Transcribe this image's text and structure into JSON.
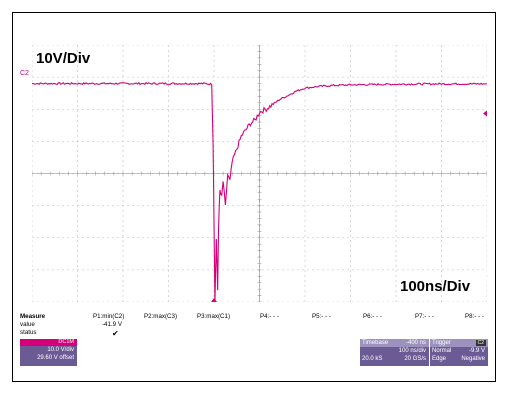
{
  "screen": {
    "vertical_scale": "10V/Div",
    "horizontal_scale": "100ns/Div",
    "channel_marker": "C2"
  },
  "colors": {
    "trace": "#d4007a",
    "grid": "#bfbfbf",
    "panel": "#6b5b95",
    "channel_header": "#d4007a"
  },
  "measure": {
    "label": "Measure",
    "row_labels": [
      "value",
      "status"
    ],
    "params": [
      "P1:min(C2)",
      "P2:max(C3)",
      "P3:max(C1)",
      "P4:- - -",
      "P5:- - -",
      "P6:- - -",
      "P7:- - -",
      "P8:- - -"
    ],
    "p1_value": "-41.9 V",
    "p1_status": "✔"
  },
  "channel": {
    "name": "C2",
    "tag": "DC1M",
    "vdiv": "10.0 V/div",
    "offset": "29.60 V offset"
  },
  "timebase": {
    "label": "Timebase",
    "delay": "-400 ns",
    "tdiv": "100 ns/div",
    "samples": "20.0 kS",
    "rate": "20 GS/s"
  },
  "trigger": {
    "label": "Trigger",
    "channel": "C2",
    "mode": "Normal",
    "level": "-9.9 V",
    "type": "Edge",
    "slope": "Negative"
  },
  "chart_data": {
    "type": "line",
    "title": "",
    "xlabel": "",
    "ylabel": "",
    "x_unit": "ns",
    "y_unit": "V",
    "x_per_div": 100,
    "y_per_div": 10,
    "xlim": [
      -400,
      600
    ],
    "ylim": [
      -29.6,
      50.4
    ],
    "grid": true,
    "series": [
      {
        "name": "C2",
        "x": [
          -400,
          -20,
          -5,
          -2,
          0,
          2,
          5,
          8,
          10,
          13,
          17,
          20,
          25,
          30,
          35,
          40,
          50,
          60,
          70,
          80,
          90,
          100,
          115,
          130,
          145,
          160,
          180,
          200,
          230,
          260,
          300,
          400,
          500,
          600
        ],
        "y": [
          38.4,
          38.4,
          38.2,
          20,
          -4,
          -30,
          -10,
          -26,
          -6,
          5,
          3,
          8,
          0,
          10,
          8,
          14,
          18,
          22,
          24,
          26,
          27,
          29.5,
          30.5,
          32,
          33.5,
          34.5,
          36,
          37,
          37.5,
          37.8,
          38,
          38.2,
          38.3,
          38.3
        ]
      }
    ]
  }
}
